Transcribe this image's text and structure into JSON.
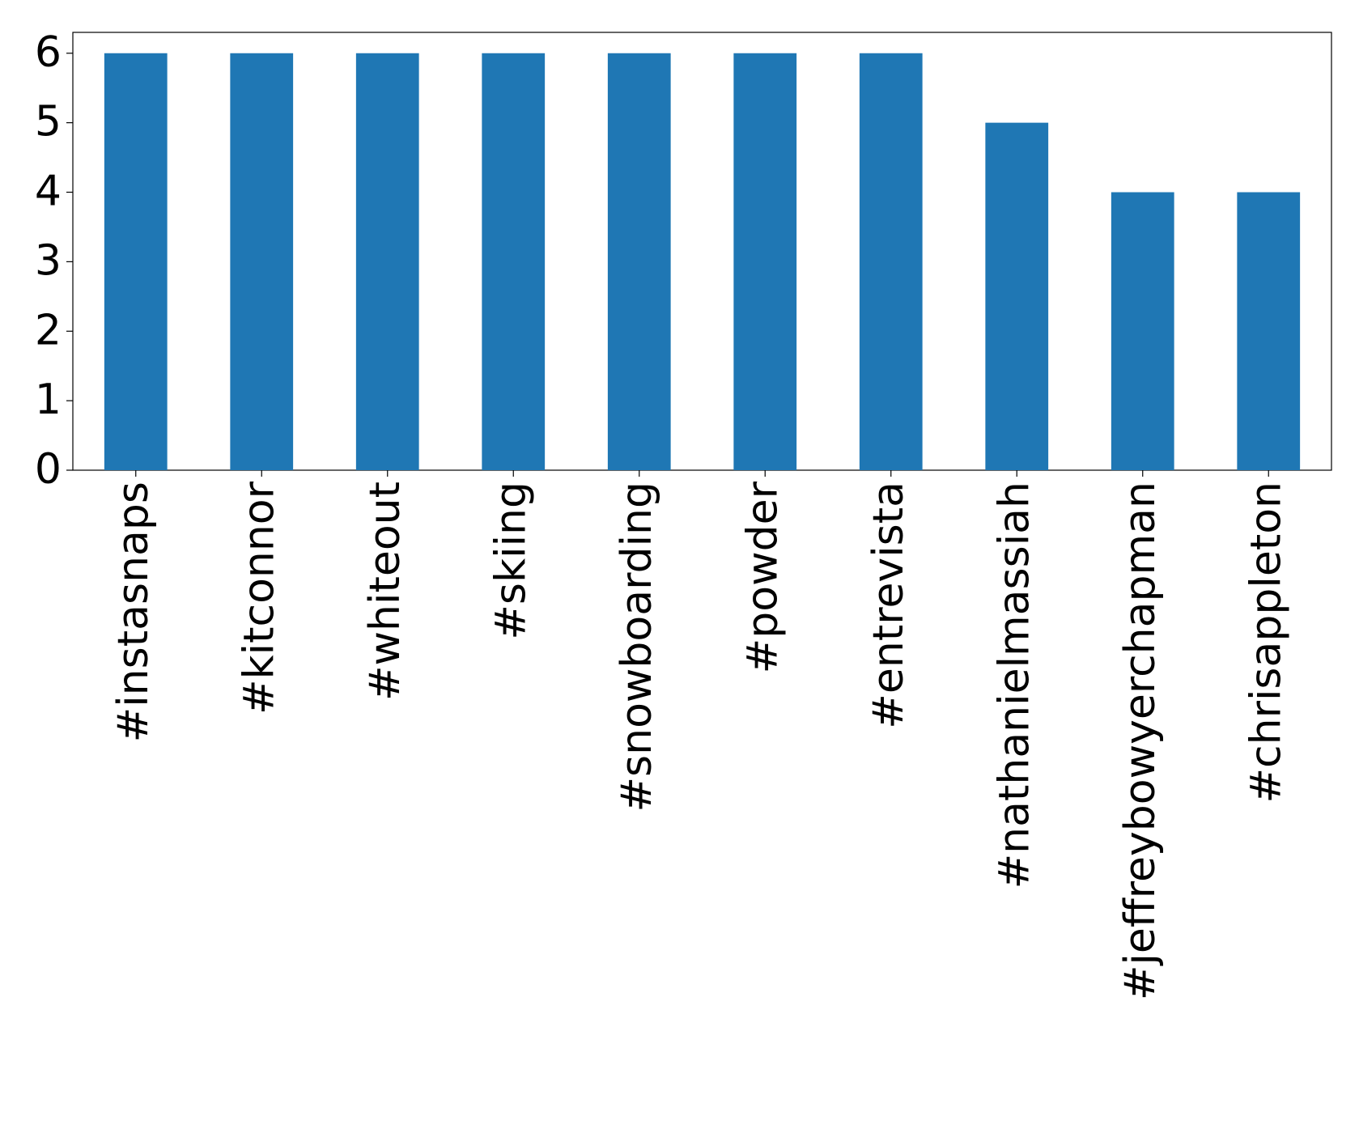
{
  "chart_data": {
    "type": "bar",
    "categories": [
      "#instasnaps",
      "#kitconnor",
      "#whiteout",
      "#skiing",
      "#snowboarding",
      "#powder",
      "#entrevista",
      "#nathanielmassiah",
      "#jeffreybowyerchapman",
      "#chrisappleton"
    ],
    "values": [
      6,
      6,
      6,
      6,
      6,
      6,
      6,
      5,
      4,
      4
    ],
    "color": "#1f77b4",
    "ylim": [
      0,
      6.3
    ],
    "yticks": [
      0,
      1,
      2,
      3,
      4,
      5,
      6
    ],
    "grid": false
  }
}
